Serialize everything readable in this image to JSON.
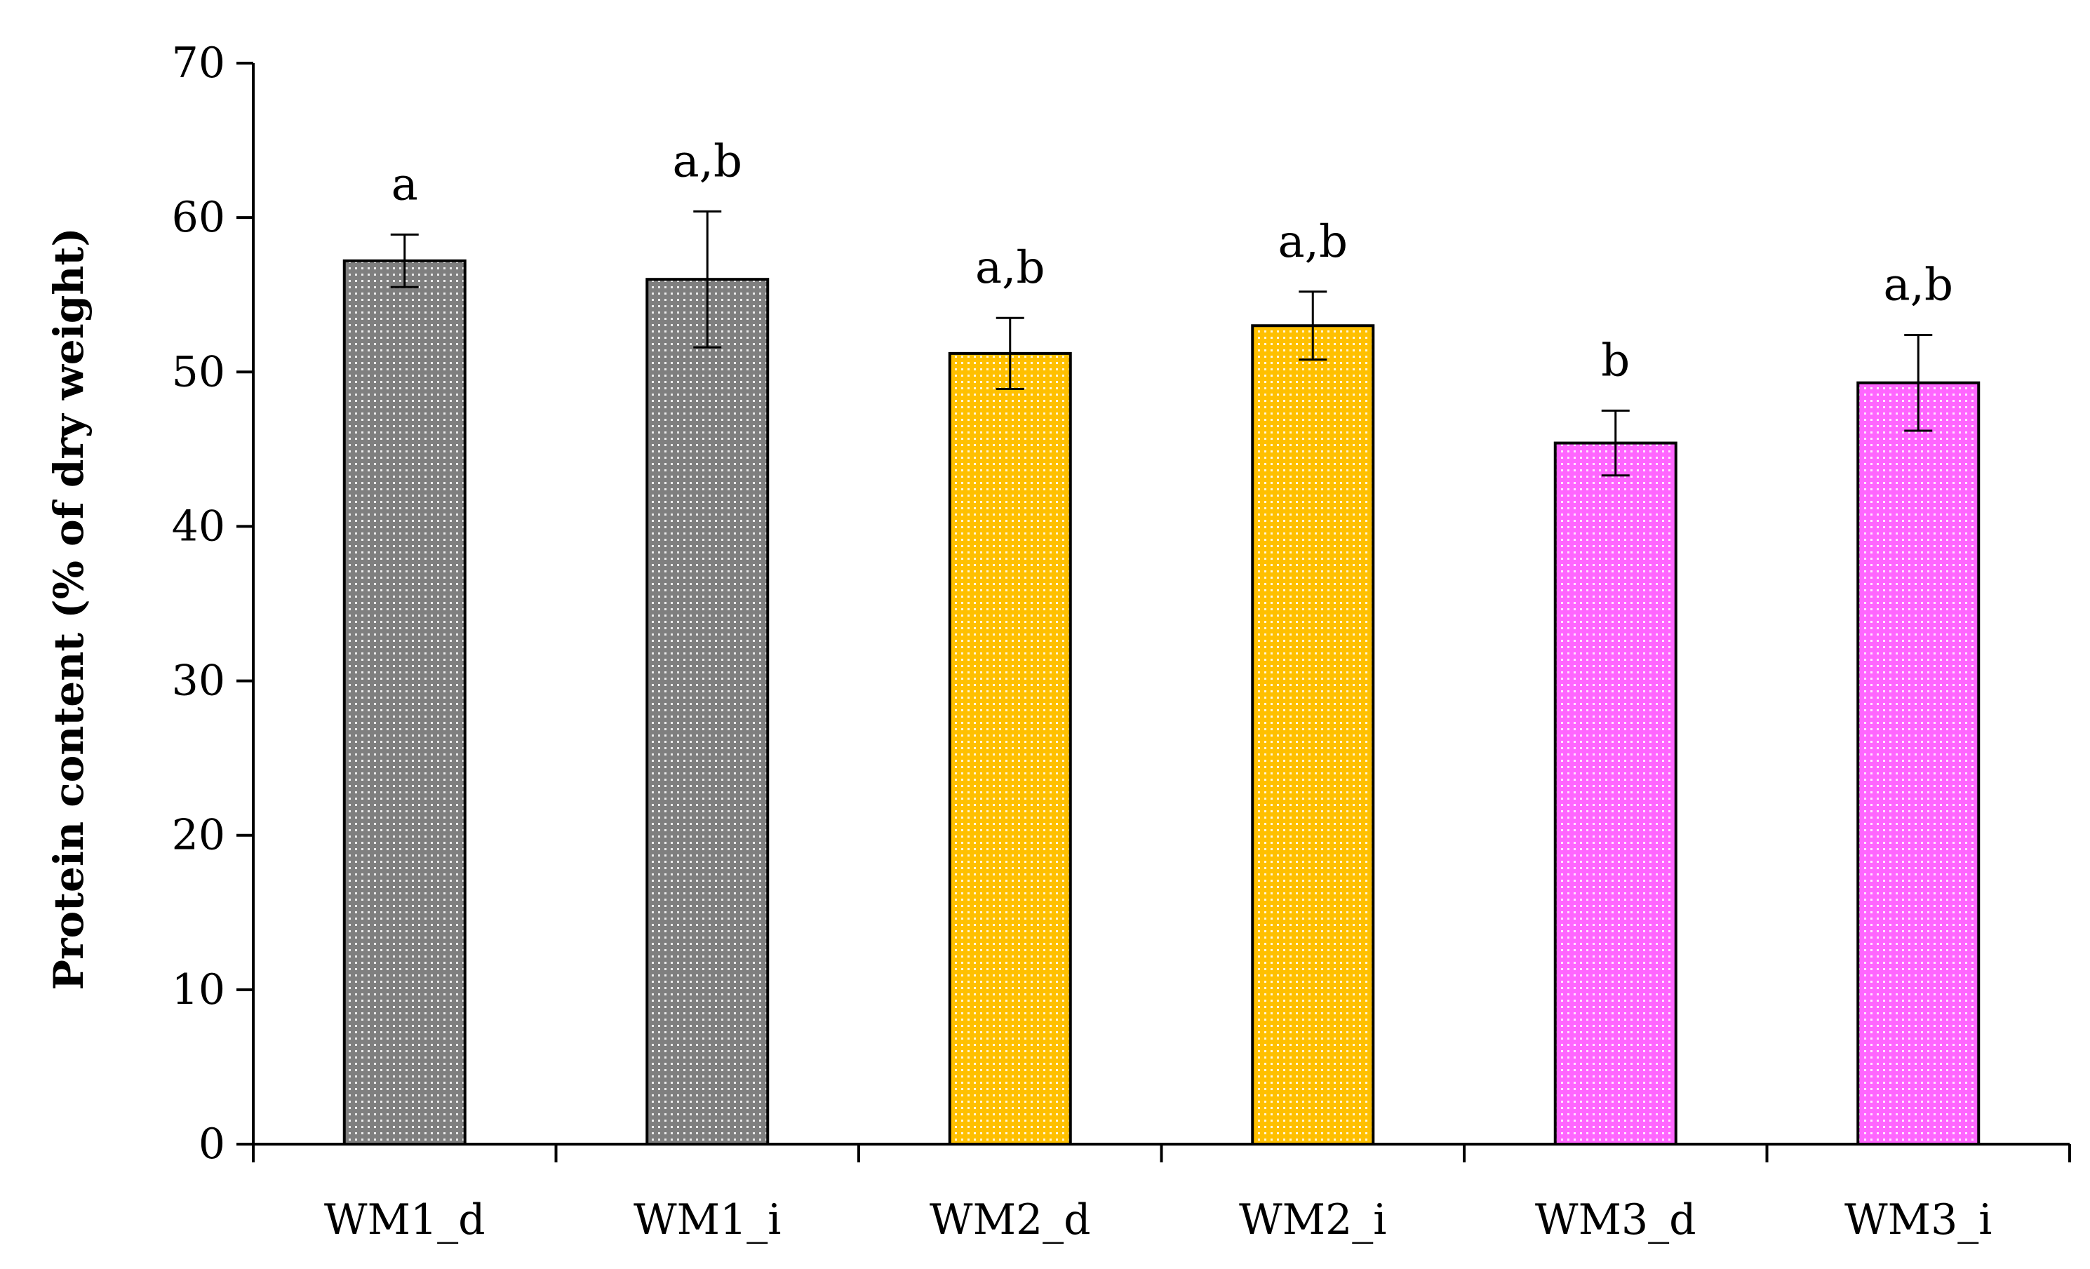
{
  "chart_data": {
    "type": "bar",
    "title": "",
    "xlabel": "",
    "ylabel": "Protein content (% of dry weight)",
    "ylim": [
      0,
      70
    ],
    "yticks": [
      0,
      10,
      20,
      30,
      40,
      50,
      60,
      70
    ],
    "grid": false,
    "categories": [
      "WM1_d",
      "WM1_i",
      "WM2_d",
      "WM2_i",
      "WM3_d",
      "WM3_i"
    ],
    "values": [
      57.2,
      56.0,
      51.2,
      53.0,
      45.4,
      49.3
    ],
    "errors": [
      1.7,
      4.4,
      2.3,
      2.2,
      2.1,
      3.1
    ],
    "significance": [
      "a",
      "a,b",
      "a,b",
      "a,b",
      "b",
      "a,b"
    ],
    "bar_colors": [
      "#7f7f7f",
      "#7f7f7f",
      "#ffc000",
      "#ffc000",
      "#ff66ff",
      "#ff66ff"
    ],
    "pattern": "dotted"
  }
}
